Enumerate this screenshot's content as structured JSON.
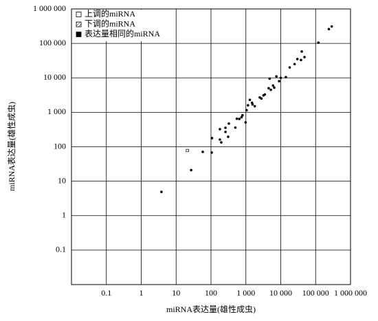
{
  "chart_data": {
    "type": "scatter",
    "x_label": "miRNA表达量(雄性成虫)",
    "y_label": "miRNA表达量(雄性成虫)",
    "log_scale": true,
    "grid": true,
    "legend": "upper-left",
    "xlim": [
      0.01,
      1000000
    ],
    "ylim": [
      0.01,
      1000000
    ],
    "xticks": [
      0.1,
      1,
      10,
      100,
      {
        "value": 1000,
        "label": "1 000"
      },
      {
        "value": 10000,
        "label": "10 000"
      },
      {
        "value": 100000,
        "label": "100 000"
      },
      {
        "value": 1000000,
        "label": "1 000 000"
      }
    ],
    "yticks": [
      0.1,
      1,
      10,
      100,
      {
        "value": 1000,
        "label": "1 000"
      },
      {
        "value": 10000,
        "label": "10 000"
      },
      {
        "value": 100000,
        "label": "100 000"
      },
      {
        "value": 1000000,
        "label": "1 000 000"
      }
    ],
    "series": [
      {
        "name": "上调的miRNA",
        "color": "#000000",
        "marker": "open",
        "x": [
          21
        ],
        "y": [
          78
        ]
      },
      {
        "name": "下调的miRNA",
        "color": "#000000",
        "marker": "hatched",
        "x": [],
        "y": []
      },
      {
        "name": "表达量相同的miRNA",
        "color": "#000000",
        "marker": "filled",
        "x": [
          3.8,
          27,
          58,
          105,
          107,
          180,
          197,
          180,
          260,
          260,
          325,
          310,
          500,
          550,
          650,
          750,
          800,
          980,
          1050,
          1150,
          1300,
          1500,
          1550,
          1800,
          2500,
          2800,
          3200,
          3500,
          4500,
          4800,
          5200,
          6000,
          6500,
          7500,
          9000,
          10000,
          14000,
          18000,
          25000,
          30000,
          38000,
          40000,
          48000,
          120000,
          240000,
          290000
        ],
        "y": [
          4.9,
          21,
          71,
          68,
          178,
          162,
          134,
          324,
          355,
          270,
          470,
          195,
          360,
          650,
          640,
          720,
          820,
          510,
          1150,
          1600,
          2300,
          1900,
          1700,
          1500,
          2700,
          2500,
          3100,
          3300,
          5000,
          9500,
          4500,
          6000,
          5200,
          11000,
          8000,
          10000,
          10500,
          20000,
          25000,
          35000,
          33000,
          58000,
          40000,
          105000,
          260000,
          310000
        ]
      }
    ]
  }
}
